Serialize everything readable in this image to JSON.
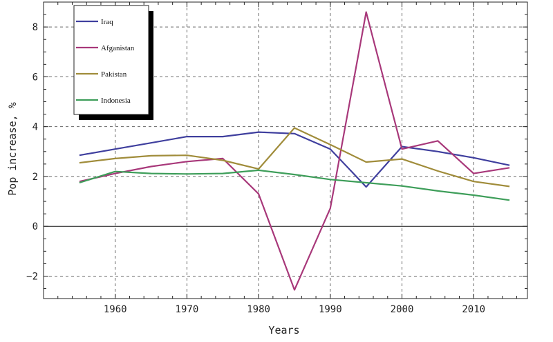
{
  "chart_data": {
    "type": "line",
    "xlabel": "Years",
    "ylabel": "Pop increase, %",
    "xlim": [
      1950,
      2017.5
    ],
    "ylim": [
      -2.9,
      9
    ],
    "xticks": [
      1960,
      1970,
      1980,
      1990,
      2000,
      2010
    ],
    "yticks": [
      -2,
      0,
      2,
      4,
      6,
      8
    ],
    "ytick_labels": [
      "−2",
      "0",
      "2",
      "4",
      "6",
      "8"
    ],
    "grid": true,
    "legend_position": "top-left",
    "series": [
      {
        "name": "Iraq",
        "color": "#3f3f9e",
        "x": [
          1955,
          1960,
          1965,
          1970,
          1975,
          1980,
          1985,
          1990,
          1995,
          2000,
          2005,
          2010,
          2015
        ],
        "y": [
          2.85,
          3.1,
          3.35,
          3.6,
          3.6,
          3.78,
          3.72,
          3.1,
          1.58,
          3.2,
          3.0,
          2.75,
          2.45
        ]
      },
      {
        "name": "Afganistan",
        "color": "#a8387a",
        "x": [
          1955,
          1960,
          1965,
          1970,
          1975,
          1980,
          1985,
          1990,
          1995,
          2000,
          2005,
          2010,
          2015
        ],
        "y": [
          1.8,
          2.12,
          2.4,
          2.6,
          2.72,
          1.3,
          -2.55,
          0.72,
          8.6,
          3.1,
          3.43,
          2.12,
          2.35
        ]
      },
      {
        "name": "Pakistan",
        "color": "#a08c3a",
        "x": [
          1955,
          1960,
          1965,
          1970,
          1975,
          1980,
          1985,
          1990,
          1995,
          2000,
          2005,
          2010,
          2015
        ],
        "y": [
          2.55,
          2.72,
          2.83,
          2.85,
          2.65,
          2.3,
          3.95,
          3.28,
          2.58,
          2.7,
          2.22,
          1.8,
          1.6
        ]
      },
      {
        "name": "Indonesia",
        "color": "#3e9e5a",
        "x": [
          1955,
          1960,
          1965,
          1970,
          1975,
          1980,
          1985,
          1990,
          1995,
          2000,
          2005,
          2010,
          2015
        ],
        "y": [
          1.75,
          2.2,
          2.12,
          2.1,
          2.12,
          2.25,
          2.08,
          1.88,
          1.75,
          1.62,
          1.42,
          1.25,
          1.05
        ]
      }
    ]
  }
}
